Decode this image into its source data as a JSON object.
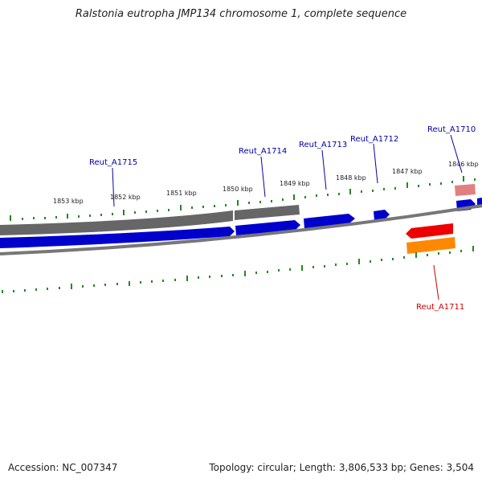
{
  "title": "Ralstonia eutropha JMP134 chromosome 1, complete sequence",
  "footer": {
    "accession": "Accession: NC_007347",
    "summary": "Topology: circular; Length: 3,806,533 bp; Genes: 3,504"
  },
  "scale_labels": [
    "1853 kbp",
    "1852 kbp",
    "1851 kbp",
    "1850 kbp",
    "1849 kbp",
    "1848 kbp",
    "1847 kbp",
    "1846 kbp"
  ],
  "gene_labels": {
    "reut_a1715": "Reut_A1715",
    "reut_a1714": "Reut_A1714",
    "reut_a1713": "Reut_A1713",
    "reut_a1712": "Reut_A1712",
    "reut_a1710": "Reut_A1710",
    "reut_a1711": "Reut_A1711"
  },
  "colors": {
    "cds_forward": "#0000cc",
    "gene_track": "#666666",
    "backbone": "#777777",
    "red_feature": "#ee0000",
    "orange_feature": "#ff8800",
    "pink_feature": "#e08080",
    "tick": "#228822",
    "forward_label": "#0000aa",
    "reverse_label": "#cc0000"
  }
}
